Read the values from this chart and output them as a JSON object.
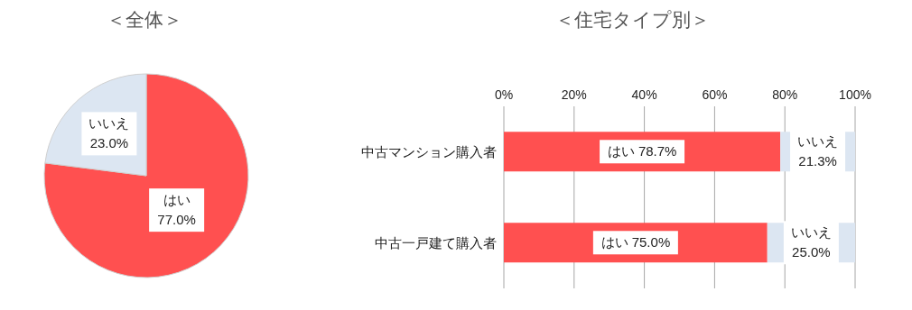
{
  "chart_data": [
    {
      "type": "pie",
      "title": "＜全体＞",
      "categories": [
        "はい",
        "いいえ"
      ],
      "values": [
        77.0,
        23.0
      ],
      "colors": [
        "#ff5050",
        "#dce6f2"
      ],
      "value_labels": [
        "77.0%",
        "23.0%"
      ]
    },
    {
      "type": "bar",
      "title": "＜住宅タイプ別＞",
      "orientation": "horizontal",
      "stacked": true,
      "categories": [
        "中古マンション購入者",
        "中古一戸建て購入者"
      ],
      "series": [
        {
          "name": "はい",
          "color": "#ff5050",
          "values": [
            78.7,
            75.0
          ],
          "value_labels": [
            "78.7%",
            "75.0%"
          ]
        },
        {
          "name": "いいえ",
          "color": "#dce6f2",
          "values": [
            21.3,
            25.0
          ],
          "value_labels": [
            "21.3%",
            "25.0%"
          ]
        }
      ],
      "xlim": [
        0,
        100
      ],
      "xticks": [
        {
          "value": 0,
          "label": "0%"
        },
        {
          "value": 20,
          "label": "20%"
        },
        {
          "value": 40,
          "label": "40%"
        },
        {
          "value": 60,
          "label": "60%"
        },
        {
          "value": 80,
          "label": "80%"
        },
        {
          "value": 100,
          "label": "100%"
        }
      ],
      "grid": "x",
      "legend": false
    }
  ]
}
